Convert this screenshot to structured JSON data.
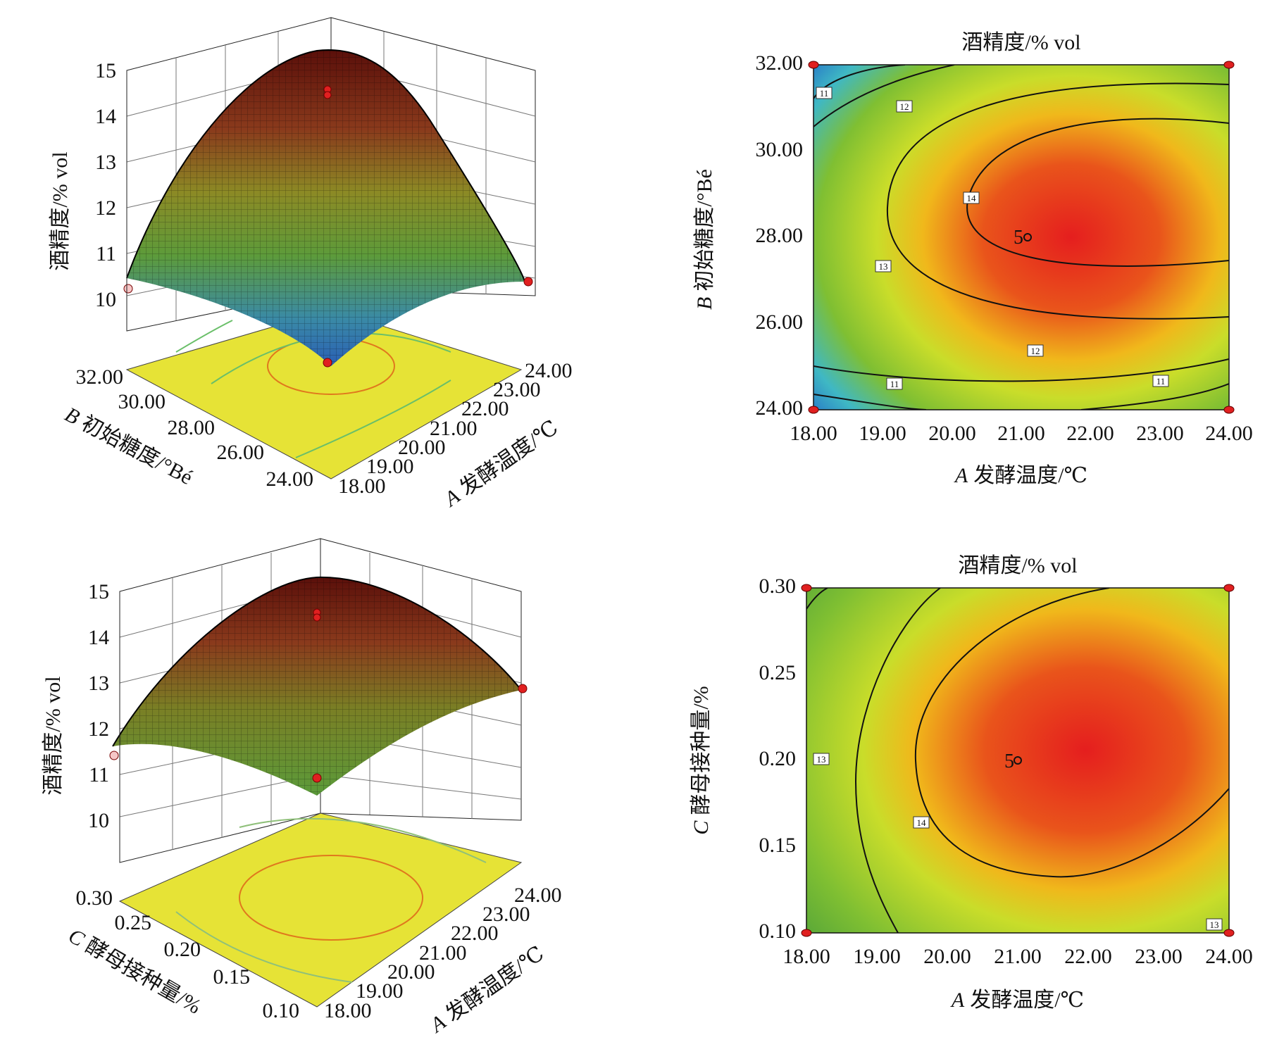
{
  "chart_data": [
    {
      "type": "surface",
      "zlabel": "酒精度/% vol",
      "zticks": [
        "10",
        "11",
        "12",
        "13",
        "14",
        "15"
      ],
      "xlabel_prefix": "A",
      "xlabel": "发酵温度/℃",
      "xticks": [
        "18.00",
        "19.00",
        "20.00",
        "21.00",
        "22.00",
        "23.00",
        "24.00"
      ],
      "ylabel_prefix": "B",
      "ylabel": "初始糖度/°Bé",
      "yticks": [
        "24.00",
        "26.00",
        "28.00",
        "30.00",
        "32.00"
      ],
      "zlim": [
        10,
        15
      ],
      "design_points": [
        {
          "x": 21,
          "y": 28,
          "z": 14.6
        },
        {
          "x": 21,
          "y": 28,
          "z": 14.5
        },
        {
          "x": 18,
          "y": 32,
          "z": 10.4
        },
        {
          "x": 24,
          "y": 32,
          "z": 10.3
        },
        {
          "x": 18,
          "y": 24,
          "z": 10.3
        }
      ]
    },
    {
      "type": "contour",
      "title": "酒精度/% vol",
      "xlabel_prefix": "A",
      "xlabel": "发酵温度/℃",
      "ylabel_prefix": "B",
      "ylabel": "初始糖度/°Bé",
      "xticks": [
        "18.00",
        "19.00",
        "20.00",
        "21.00",
        "22.00",
        "23.00",
        "24.00"
      ],
      "yticks": [
        "24.00",
        "26.00",
        "28.00",
        "30.00",
        "32.00"
      ],
      "xlim": [
        18,
        24
      ],
      "ylim": [
        24,
        32
      ],
      "contour_levels": [
        "11",
        "11",
        "11",
        "12",
        "12",
        "13",
        "14"
      ],
      "center_point": {
        "label": "5",
        "x": 21,
        "y": 28
      },
      "corner_points": [
        {
          "x": 18,
          "y": 24
        },
        {
          "x": 24,
          "y": 24
        },
        {
          "x": 18,
          "y": 32
        },
        {
          "x": 24,
          "y": 32
        }
      ]
    },
    {
      "type": "surface",
      "zlabel": "酒精度/% vol",
      "zticks": [
        "10",
        "11",
        "12",
        "13",
        "14",
        "15"
      ],
      "xlabel_prefix": "A",
      "xlabel": "发酵温度/℃",
      "xticks": [
        "18.00",
        "19.00",
        "20.00",
        "21.00",
        "22.00",
        "23.00",
        "24.00"
      ],
      "ylabel_prefix": "C",
      "ylabel": "酵母接种量/%",
      "yticks": [
        "0.10",
        "0.15",
        "0.20",
        "0.25",
        "0.30"
      ],
      "zlim": [
        10,
        15
      ],
      "design_points": [
        {
          "x": 21,
          "y": 0.2,
          "z": 14.6
        },
        {
          "x": 21,
          "y": 0.2,
          "z": 14.5
        },
        {
          "x": 18,
          "y": 0.3,
          "z": 11.6
        },
        {
          "x": 24,
          "y": 0.3,
          "z": 13.0
        },
        {
          "x": 18,
          "y": 0.1,
          "z": 11.1
        }
      ]
    },
    {
      "type": "contour",
      "title": "酒精度/% vol",
      "xlabel_prefix": "A",
      "xlabel": "发酵温度/℃",
      "ylabel_prefix": "C",
      "ylabel": "酵母接种量/%",
      "xticks": [
        "18.00",
        "19.00",
        "20.00",
        "21.00",
        "22.00",
        "23.00",
        "24.00"
      ],
      "yticks": [
        "0.10",
        "0.15",
        "0.20",
        "0.25",
        "0.30"
      ],
      "xlim": [
        18,
        24
      ],
      "ylim": [
        0.1,
        0.3
      ],
      "contour_levels": [
        "13",
        "14",
        "13"
      ],
      "center_point": {
        "label": "5",
        "x": 21,
        "y": 0.2
      },
      "corner_points": [
        {
          "x": 18,
          "y": 0.1
        },
        {
          "x": 24,
          "y": 0.1
        },
        {
          "x": 18,
          "y": 0.3
        },
        {
          "x": 24,
          "y": 0.3
        }
      ]
    }
  ]
}
